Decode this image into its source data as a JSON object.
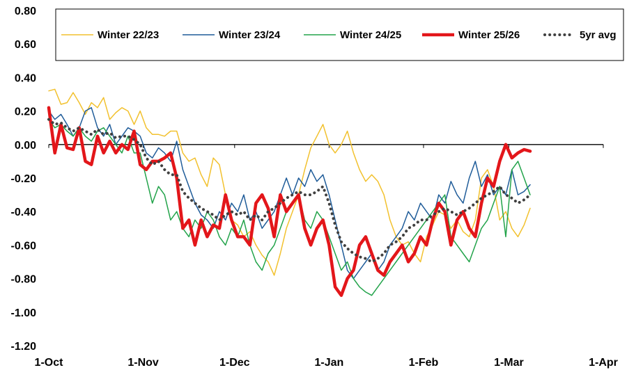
{
  "chart_data": {
    "type": "line",
    "title": "",
    "xlabel": "",
    "ylabel": "",
    "ylim": [
      -1.2,
      0.8
    ],
    "yticks": [
      0.8,
      0.6,
      0.4,
      0.2,
      0.0,
      -0.2,
      -0.4,
      -0.6,
      -0.8,
      -1.0,
      -1.2
    ],
    "ytick_labels": [
      "0.80",
      "0.60",
      "0.40",
      "0.20",
      "0.00",
      "-0.20",
      "-0.40",
      "-0.60",
      "-0.80",
      "-1.00",
      "-1.20"
    ],
    "xlim_days": [
      0,
      182
    ],
    "x_unit": "days since 1-Oct",
    "xticks": [
      0,
      31,
      61,
      92,
      123,
      151,
      182
    ],
    "xtick_labels": [
      "1-Oct",
      "1-Nov",
      "1-Dec",
      "1-Jan",
      "1-Feb",
      "1-Mar",
      "1-Apr"
    ],
    "grid": false,
    "legend_position": "top",
    "series": [
      {
        "name": "Winter 22/23",
        "color": "#F2C12E",
        "style": "thin",
        "x": [
          0,
          2,
          4,
          6,
          8,
          10,
          12,
          14,
          16,
          18,
          20,
          22,
          24,
          26,
          28,
          30,
          32,
          34,
          36,
          38,
          40,
          42,
          44,
          46,
          48,
          50,
          52,
          54,
          56,
          58,
          60,
          62,
          64,
          66,
          68,
          70,
          72,
          74,
          76,
          78,
          80,
          82,
          84,
          86,
          88,
          90,
          92,
          94,
          96,
          98,
          100,
          102,
          104,
          106,
          108,
          110,
          112,
          114,
          116,
          118,
          120,
          122,
          124,
          126,
          128,
          130,
          132,
          134,
          136,
          138,
          140,
          142,
          144,
          146,
          148,
          150,
          152,
          154,
          156,
          158
        ],
        "values": [
          0.32,
          0.33,
          0.24,
          0.25,
          0.31,
          0.25,
          0.18,
          0.25,
          0.22,
          0.28,
          0.15,
          0.19,
          0.22,
          0.2,
          0.12,
          0.2,
          0.1,
          0.06,
          0.06,
          0.05,
          0.08,
          0.08,
          -0.05,
          -0.1,
          -0.08,
          -0.18,
          -0.25,
          -0.08,
          -0.12,
          -0.3,
          -0.45,
          -0.48,
          -0.55,
          -0.52,
          -0.6,
          -0.66,
          -0.7,
          -0.78,
          -0.65,
          -0.5,
          -0.4,
          -0.3,
          -0.15,
          -0.02,
          0.05,
          0.12,
          0.0,
          -0.05,
          0.0,
          0.08,
          -0.05,
          -0.15,
          -0.22,
          -0.18,
          -0.22,
          -0.3,
          -0.45,
          -0.55,
          -0.6,
          -0.58,
          -0.65,
          -0.7,
          -0.55,
          -0.48,
          -0.4,
          -0.42,
          -0.5,
          -0.45,
          -0.52,
          -0.55,
          -0.45,
          -0.2,
          -0.15,
          -0.25,
          -0.45,
          -0.4,
          -0.5,
          -0.55,
          -0.48,
          -0.38
        ]
      },
      {
        "name": "Winter 23/24",
        "color": "#1F5C99",
        "style": "thin",
        "x": [
          0,
          2,
          4,
          6,
          8,
          10,
          12,
          14,
          16,
          18,
          20,
          22,
          24,
          26,
          28,
          30,
          32,
          34,
          36,
          38,
          40,
          42,
          44,
          46,
          48,
          50,
          52,
          54,
          56,
          58,
          60,
          62,
          64,
          66,
          68,
          70,
          72,
          74,
          76,
          78,
          80,
          82,
          84,
          86,
          88,
          90,
          92,
          94,
          96,
          98,
          100,
          102,
          104,
          106,
          108,
          110,
          112,
          114,
          116,
          118,
          120,
          122,
          124,
          126,
          128,
          130,
          132,
          134,
          136,
          138,
          140,
          142,
          144,
          146,
          148,
          150,
          152,
          154,
          156,
          158
        ],
        "values": [
          0.2,
          0.15,
          0.18,
          0.12,
          0.05,
          0.1,
          0.2,
          0.22,
          0.1,
          0.05,
          0.12,
          0.0,
          0.05,
          0.1,
          0.08,
          0.05,
          -0.05,
          -0.08,
          -0.02,
          -0.05,
          -0.1,
          0.02,
          -0.15,
          -0.25,
          -0.35,
          -0.42,
          -0.45,
          -0.5,
          -0.4,
          -0.45,
          -0.35,
          -0.4,
          -0.3,
          -0.45,
          -0.4,
          -0.5,
          -0.45,
          -0.4,
          -0.3,
          -0.2,
          -0.3,
          -0.2,
          -0.25,
          -0.15,
          -0.22,
          -0.18,
          -0.3,
          -0.45,
          -0.6,
          -0.75,
          -0.8,
          -0.75,
          -0.7,
          -0.65,
          -0.75,
          -0.7,
          -0.6,
          -0.55,
          -0.5,
          -0.4,
          -0.45,
          -0.35,
          -0.4,
          -0.45,
          -0.3,
          -0.35,
          -0.22,
          -0.3,
          -0.35,
          -0.2,
          -0.1,
          -0.25,
          -0.18,
          -0.3,
          -0.25,
          -0.3,
          -0.15,
          -0.3,
          -0.28,
          -0.24
        ]
      },
      {
        "name": "Winter 24/25",
        "color": "#22A34A",
        "style": "thin",
        "x": [
          0,
          2,
          4,
          6,
          8,
          10,
          12,
          14,
          16,
          18,
          20,
          22,
          24,
          26,
          28,
          30,
          32,
          34,
          36,
          38,
          40,
          42,
          44,
          46,
          48,
          50,
          52,
          54,
          56,
          58,
          60,
          62,
          64,
          66,
          68,
          70,
          72,
          74,
          76,
          78,
          80,
          82,
          84,
          86,
          88,
          90,
          92,
          94,
          96,
          98,
          100,
          102,
          104,
          106,
          108,
          110,
          112,
          114,
          116,
          118,
          120,
          122,
          124,
          126,
          128,
          130,
          132,
          134,
          136,
          138,
          140,
          142,
          144,
          146,
          148,
          150,
          152,
          154,
          156,
          158
        ],
        "values": [
          0.15,
          0.1,
          0.12,
          0.08,
          0.05,
          0.1,
          0.05,
          0.02,
          0.08,
          0.1,
          0.05,
          0.0,
          -0.05,
          0.05,
          -0.05,
          -0.05,
          -0.2,
          -0.35,
          -0.25,
          -0.3,
          -0.45,
          -0.4,
          -0.5,
          -0.55,
          -0.45,
          -0.5,
          -0.4,
          -0.45,
          -0.55,
          -0.6,
          -0.5,
          -0.55,
          -0.45,
          -0.6,
          -0.7,
          -0.75,
          -0.65,
          -0.6,
          -0.5,
          -0.4,
          -0.35,
          -0.3,
          -0.45,
          -0.5,
          -0.4,
          -0.45,
          -0.55,
          -0.65,
          -0.75,
          -0.7,
          -0.8,
          -0.85,
          -0.88,
          -0.9,
          -0.85,
          -0.8,
          -0.75,
          -0.7,
          -0.65,
          -0.6,
          -0.55,
          -0.5,
          -0.45,
          -0.4,
          -0.35,
          -0.3,
          -0.55,
          -0.6,
          -0.65,
          -0.7,
          -0.6,
          -0.5,
          -0.45,
          -0.35,
          -0.25,
          -0.55,
          -0.15,
          -0.1,
          -0.2,
          -0.3
        ]
      },
      {
        "name": "Winter 25/26",
        "color": "#E3161A",
        "style": "thick",
        "x": [
          0,
          2,
          4,
          6,
          8,
          10,
          12,
          14,
          16,
          18,
          20,
          22,
          24,
          26,
          28,
          30,
          32,
          34,
          36,
          38,
          40,
          42,
          44,
          46,
          48,
          50,
          52,
          54,
          56,
          58,
          60,
          62,
          64,
          66,
          68,
          70,
          72,
          74,
          76,
          78,
          80,
          82,
          84,
          86,
          88,
          90,
          92,
          94,
          96,
          98,
          100,
          102,
          104,
          106,
          108,
          110,
          112,
          114,
          116,
          118,
          120,
          122,
          124,
          126,
          128,
          130,
          132,
          134,
          136,
          138,
          140,
          142,
          144,
          146,
          148,
          150,
          152,
          154,
          156,
          158
        ],
        "values": [
          0.22,
          -0.05,
          0.12,
          -0.02,
          -0.03,
          0.1,
          -0.1,
          -0.12,
          0.05,
          -0.05,
          0.02,
          -0.05,
          0.0,
          -0.03,
          0.08,
          -0.12,
          -0.15,
          -0.1,
          -0.1,
          -0.08,
          -0.05,
          -0.2,
          -0.5,
          -0.45,
          -0.6,
          -0.45,
          -0.55,
          -0.48,
          -0.5,
          -0.3,
          -0.45,
          -0.55,
          -0.55,
          -0.6,
          -0.35,
          -0.3,
          -0.38,
          -0.55,
          -0.3,
          -0.4,
          -0.35,
          -0.3,
          -0.5,
          -0.6,
          -0.5,
          -0.45,
          -0.6,
          -0.85,
          -0.9,
          -0.8,
          -0.75,
          -0.6,
          -0.55,
          -0.65,
          -0.75,
          -0.78,
          -0.7,
          -0.65,
          -0.6,
          -0.7,
          -0.65,
          -0.55,
          -0.6,
          -0.45,
          -0.35,
          -0.4,
          -0.6,
          -0.45,
          -0.4,
          -0.5,
          -0.55,
          -0.35,
          -0.2,
          -0.25,
          -0.1,
          0.0,
          -0.08,
          -0.05,
          -0.03,
          -0.04
        ]
      },
      {
        "name": "5yr avg",
        "color": "#404040",
        "style": "dotted",
        "x": [
          0,
          2,
          4,
          6,
          8,
          10,
          12,
          14,
          16,
          18,
          20,
          22,
          24,
          26,
          28,
          30,
          32,
          34,
          36,
          38,
          40,
          42,
          44,
          46,
          48,
          50,
          52,
          54,
          56,
          58,
          60,
          62,
          64,
          66,
          68,
          70,
          72,
          74,
          76,
          78,
          80,
          82,
          84,
          86,
          88,
          90,
          92,
          94,
          96,
          98,
          100,
          102,
          104,
          106,
          108,
          110,
          112,
          114,
          116,
          118,
          120,
          122,
          124,
          126,
          128,
          130,
          132,
          134,
          136,
          138,
          140,
          142,
          144,
          146,
          148,
          150,
          152,
          154,
          156,
          158
        ],
        "values": [
          0.15,
          0.12,
          0.13,
          0.1,
          0.08,
          0.1,
          0.08,
          0.06,
          0.09,
          0.06,
          0.07,
          0.04,
          0.05,
          0.05,
          0.03,
          0.0,
          -0.08,
          -0.12,
          -0.1,
          -0.15,
          -0.18,
          -0.18,
          -0.28,
          -0.32,
          -0.35,
          -0.38,
          -0.4,
          -0.42,
          -0.45,
          -0.42,
          -0.4,
          -0.42,
          -0.4,
          -0.45,
          -0.42,
          -0.45,
          -0.4,
          -0.38,
          -0.35,
          -0.32,
          -0.3,
          -0.28,
          -0.3,
          -0.3,
          -0.28,
          -0.25,
          -0.35,
          -0.48,
          -0.58,
          -0.62,
          -0.65,
          -0.67,
          -0.68,
          -0.7,
          -0.68,
          -0.65,
          -0.6,
          -0.58,
          -0.55,
          -0.5,
          -0.48,
          -0.45,
          -0.45,
          -0.42,
          -0.4,
          -0.38,
          -0.4,
          -0.42,
          -0.4,
          -0.38,
          -0.35,
          -0.32,
          -0.3,
          -0.28,
          -0.25,
          -0.3,
          -0.32,
          -0.35,
          -0.33,
          -0.3
        ]
      }
    ]
  }
}
